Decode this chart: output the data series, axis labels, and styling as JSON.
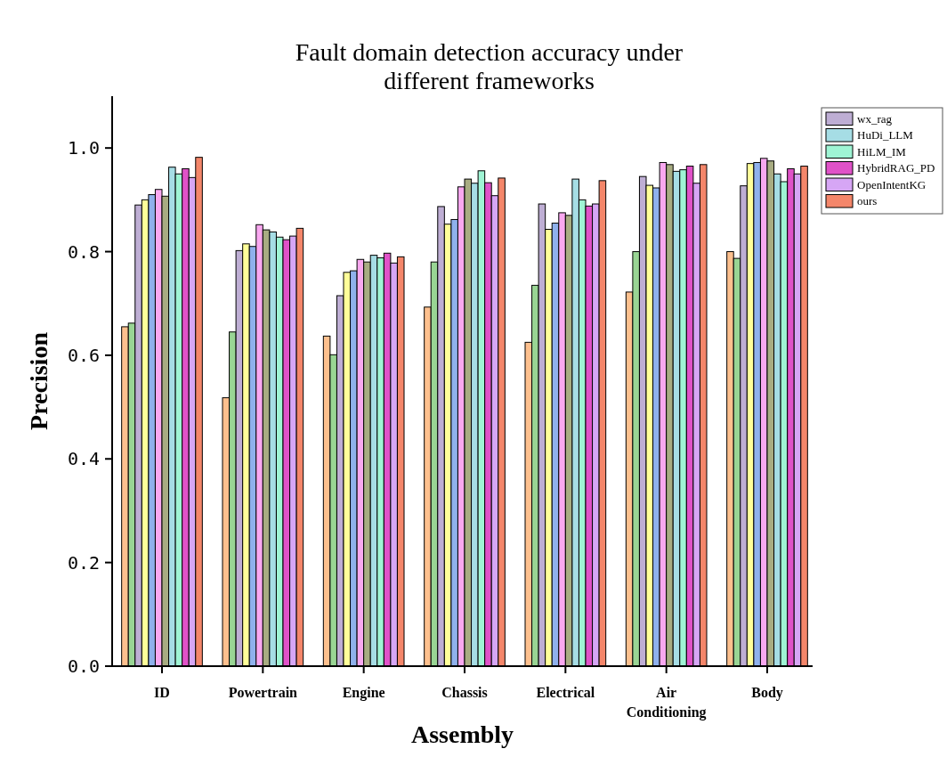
{
  "chart_data": {
    "type": "bar",
    "title": "Fault domain detection accuracy under different frameworks",
    "xlabel": "Assembly",
    "ylabel": "Precision",
    "categories": [
      "ID",
      "Powertrain",
      "Engine",
      "Chassis",
      "Electrical",
      "Air Conditioning",
      "Body"
    ],
    "series": [
      {
        "color": "#fdc08e",
        "values": [
          0.655,
          0.518,
          0.637,
          0.693,
          0.625,
          0.722,
          0.8
        ]
      },
      {
        "color": "#99d594",
        "values": [
          0.662,
          0.645,
          0.601,
          0.78,
          0.735,
          0.8,
          0.787
        ]
      },
      {
        "name": "wx_rag",
        "color": "#beaed4",
        "values": [
          0.89,
          0.802,
          0.715,
          0.887,
          0.892,
          0.945,
          0.927
        ]
      },
      {
        "color": "#ffff99",
        "values": [
          0.9,
          0.815,
          0.76,
          0.853,
          0.843,
          0.928,
          0.97
        ]
      },
      {
        "color": "#8fb1ec",
        "values": [
          0.91,
          0.81,
          0.763,
          0.862,
          0.855,
          0.923,
          0.972
        ]
      },
      {
        "color": "#f9a8f0",
        "values": [
          0.92,
          0.852,
          0.785,
          0.925,
          0.875,
          0.972,
          0.98
        ]
      },
      {
        "color": "#a8ac82",
        "values": [
          0.907,
          0.842,
          0.78,
          0.94,
          0.87,
          0.968,
          0.975
        ]
      },
      {
        "name": "HuDi_LLM",
        "color": "#a6dde5",
        "values": [
          0.963,
          0.838,
          0.793,
          0.932,
          0.94,
          0.955,
          0.95
        ]
      },
      {
        "name": "HiLM_IM",
        "color": "#9ff4d4",
        "values": [
          0.95,
          0.828,
          0.788,
          0.956,
          0.9,
          0.958,
          0.935
        ]
      },
      {
        "name": "HybridRAG_PD",
        "color": "#e052c8",
        "values": [
          0.96,
          0.823,
          0.797,
          0.933,
          0.888,
          0.965,
          0.96
        ]
      },
      {
        "name": "OpenIntentKG",
        "color": "#d6a6f5",
        "values": [
          0.943,
          0.83,
          0.778,
          0.908,
          0.892,
          0.932,
          0.95
        ]
      },
      {
        "name": "ours",
        "color": "#f4866a",
        "values": [
          0.982,
          0.845,
          0.79,
          0.942,
          0.937,
          0.968,
          0.965
        ]
      }
    ],
    "ylim": [
      0,
      1.1
    ],
    "yticks": [
      {
        "value": 0,
        "label": "0.0"
      },
      0.2,
      0.4,
      0.6,
      0.8,
      {
        "value": 1,
        "label": "1.0"
      }
    ],
    "legend": "top right",
    "grid": false
  }
}
